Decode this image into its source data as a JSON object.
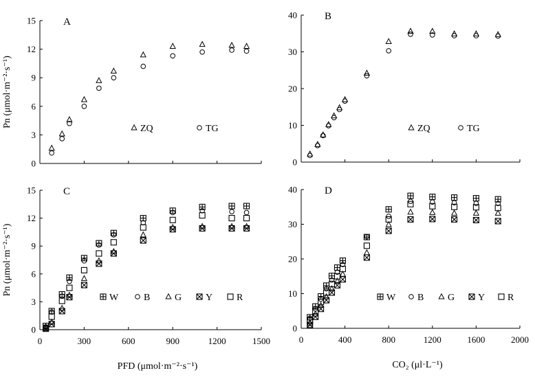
{
  "chart_data": [
    {
      "id": "A",
      "type": "scatter",
      "panel_label": "A",
      "ylabel": "Pn (μmol·m⁻²·s⁻¹)",
      "xlim": [
        0,
        1500
      ],
      "ylim": [
        0,
        15
      ],
      "yticks": [
        0,
        3,
        6,
        9,
        12,
        15
      ],
      "series": [
        {
          "name": "ZQ",
          "marker": "triangle",
          "x": [
            80,
            150,
            200,
            300,
            400,
            500,
            700,
            900,
            1100,
            1300,
            1400
          ],
          "y": [
            1.6,
            3.1,
            4.6,
            6.7,
            8.7,
            9.7,
            11.4,
            12.3,
            12.5,
            12.4,
            12.3
          ]
        },
        {
          "name": "TG",
          "marker": "circle",
          "x": [
            80,
            150,
            200,
            300,
            400,
            500,
            700,
            900,
            1100,
            1300,
            1400
          ],
          "y": [
            1.1,
            2.6,
            4.2,
            6.0,
            7.9,
            9.0,
            10.2,
            11.3,
            11.7,
            11.9,
            11.8
          ]
        }
      ]
    },
    {
      "id": "B",
      "type": "scatter",
      "panel_label": "B",
      "xlim": [
        0,
        2000
      ],
      "ylim": [
        0,
        40
      ],
      "yticks": [
        0,
        10,
        20,
        30,
        40
      ],
      "series": [
        {
          "name": "ZQ",
          "marker": "triangle",
          "x": [
            80,
            150,
            200,
            250,
            300,
            350,
            400,
            600,
            800,
            1000,
            1200,
            1400,
            1600,
            1800
          ],
          "y": [
            2.2,
            4.8,
            7.4,
            10.2,
            12.6,
            14.8,
            17.0,
            24.2,
            32.8,
            35.6,
            35.6,
            34.9,
            34.9,
            34.7
          ]
        },
        {
          "name": "TG",
          "marker": "circle",
          "x": [
            80,
            150,
            200,
            250,
            300,
            350,
            400,
            600,
            800,
            1000,
            1200,
            1400,
            1600,
            1800
          ],
          "y": [
            1.8,
            4.5,
            7.2,
            9.9,
            12.1,
            14.3,
            16.6,
            23.5,
            30.3,
            34.8,
            34.6,
            34.4,
            34.4,
            34.3
          ]
        }
      ]
    },
    {
      "id": "C",
      "type": "scatter",
      "panel_label": "C",
      "xlabel": "PFD (μmol·m⁻²·s⁻¹)",
      "ylabel": "Pn (μmol·m⁻²·s⁻¹)",
      "xlim": [
        0,
        1500
      ],
      "ylim": [
        0,
        15
      ],
      "xticks": [
        0,
        300,
        600,
        900,
        1200,
        1500
      ],
      "yticks": [
        0,
        3,
        6,
        9,
        12,
        15
      ],
      "series": [
        {
          "name": "W",
          "marker": "cross-square",
          "x": [
            40,
            80,
            150,
            200,
            300,
            400,
            500,
            700,
            900,
            1100,
            1300,
            1400
          ],
          "y": [
            0.4,
            2.0,
            3.8,
            5.6,
            7.7,
            9.3,
            10.4,
            12.0,
            12.8,
            13.2,
            13.3,
            13.3
          ]
        },
        {
          "name": "B",
          "marker": "circle",
          "x": [
            40,
            80,
            150,
            200,
            300,
            400,
            500,
            700,
            900,
            1100,
            1300,
            1400
          ],
          "y": [
            0.3,
            1.9,
            3.6,
            5.2,
            7.4,
            9.1,
            10.2,
            11.5,
            12.6,
            12.8,
            12.7,
            12.6
          ]
        },
        {
          "name": "G",
          "marker": "triangle",
          "x": [
            40,
            80,
            150,
            200,
            300,
            400,
            500,
            700,
            900,
            1100,
            1300,
            1400
          ],
          "y": [
            0.2,
            0.8,
            2.3,
            3.7,
            5.5,
            7.4,
            8.4,
            10.2,
            11.0,
            11.1,
            11.1,
            11.1
          ]
        },
        {
          "name": "Y",
          "marker": "x-square",
          "x": [
            40,
            80,
            150,
            200,
            300,
            400,
            500,
            700,
            900,
            1100,
            1300,
            1400
          ],
          "y": [
            0.1,
            0.6,
            2.0,
            3.5,
            4.8,
            7.1,
            8.2,
            9.6,
            10.8,
            10.9,
            10.9,
            10.9
          ]
        },
        {
          "name": "R",
          "marker": "square",
          "x": [
            40,
            80,
            150,
            200,
            300,
            400,
            500,
            700,
            900,
            1100,
            1300,
            1400
          ],
          "y": [
            0.2,
            1.4,
            3.1,
            4.5,
            6.4,
            8.2,
            9.4,
            11.0,
            11.8,
            12.3,
            12.0,
            12.0
          ]
        }
      ]
    },
    {
      "id": "D",
      "type": "scatter",
      "panel_label": "D",
      "xlabel": "CO₂ (μl·L⁻¹)",
      "xlim": [
        0,
        2000
      ],
      "ylim": [
        0,
        40
      ],
      "xticks": [
        0,
        400,
        800,
        1200,
        1600,
        2000
      ],
      "yticks": [
        0,
        10,
        20,
        30,
        40
      ],
      "series": [
        {
          "name": "W",
          "marker": "cross-square",
          "x": [
            80,
            130,
            180,
            230,
            280,
            330,
            380,
            600,
            800,
            1000,
            1200,
            1400,
            1600,
            1800
          ],
          "y": [
            3.2,
            6.3,
            9.2,
            12.3,
            15.1,
            17.5,
            19.5,
            26.3,
            34.3,
            38.2,
            37.9,
            37.7,
            37.5,
            37.2
          ]
        },
        {
          "name": "B",
          "marker": "circle",
          "x": [
            80,
            130,
            180,
            230,
            280,
            330,
            380,
            600,
            800,
            1000,
            1200,
            1400,
            1600,
            1800
          ],
          "y": [
            2.9,
            5.6,
            8.4,
            11.4,
            13.9,
            16.2,
            18.4,
            26.4,
            32.3,
            36.6,
            36.4,
            36.2,
            36.0,
            36.0
          ]
        },
        {
          "name": "G",
          "marker": "triangle",
          "x": [
            80,
            130,
            180,
            230,
            280,
            330,
            380,
            600,
            800,
            1000,
            1200,
            1400,
            1600,
            1800
          ],
          "y": [
            1.4,
            4.1,
            6.6,
            9.1,
            11.4,
            13.6,
            15.6,
            21.8,
            29.9,
            33.5,
            33.4,
            33.2,
            33.2,
            33.2
          ]
        },
        {
          "name": "Y",
          "marker": "x-square",
          "x": [
            80,
            130,
            180,
            230,
            280,
            330,
            380,
            600,
            800,
            1000,
            1200,
            1400,
            1600,
            1800
          ],
          "y": [
            1.0,
            3.3,
            5.6,
            8.1,
            10.3,
            12.4,
            14.1,
            20.4,
            28.1,
            31.4,
            31.5,
            31.4,
            31.2,
            30.9
          ]
        },
        {
          "name": "R",
          "marker": "square",
          "x": [
            80,
            130,
            180,
            230,
            280,
            330,
            380,
            600,
            800,
            1000,
            1200,
            1400,
            1600,
            1800
          ],
          "y": [
            2.2,
            5.0,
            7.6,
            10.3,
            12.8,
            15.0,
            17.1,
            23.8,
            31.4,
            35.8,
            35.2,
            35.0,
            34.9,
            34.7
          ]
        }
      ]
    }
  ]
}
